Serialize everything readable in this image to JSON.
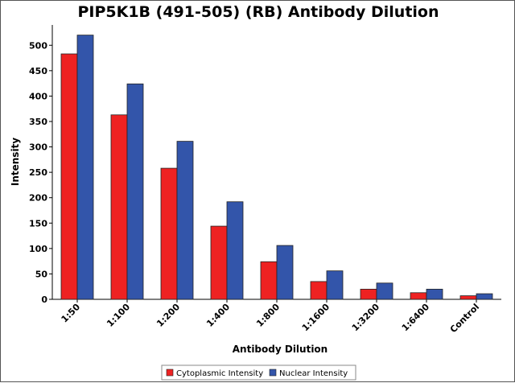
{
  "chart_data": {
    "type": "bar",
    "title": "PIP5K1B (491-505) (RB) Antibody Dilution",
    "xlabel": "Antibody Dilution",
    "ylabel": "Intensity",
    "ylim": [
      0,
      540
    ],
    "yticks": [
      0,
      50,
      100,
      150,
      200,
      250,
      300,
      350,
      400,
      450,
      500
    ],
    "categories": [
      "1:50",
      "1:100",
      "1:200",
      "1:400",
      "1:800",
      "1:1600",
      "1:3200",
      "1:6400",
      "Control"
    ],
    "series": [
      {
        "name": "Cytoplasmic Intensity",
        "color": "#ee2222",
        "values": [
          483,
          363,
          258,
          144,
          74,
          35,
          20,
          13,
          7
        ]
      },
      {
        "name": "Nuclear Intensity",
        "color": "#3355aa",
        "values": [
          520,
          424,
          311,
          192,
          106,
          56,
          32,
          20,
          11
        ]
      }
    ],
    "grid": false,
    "legend_position": "bottom-center"
  }
}
